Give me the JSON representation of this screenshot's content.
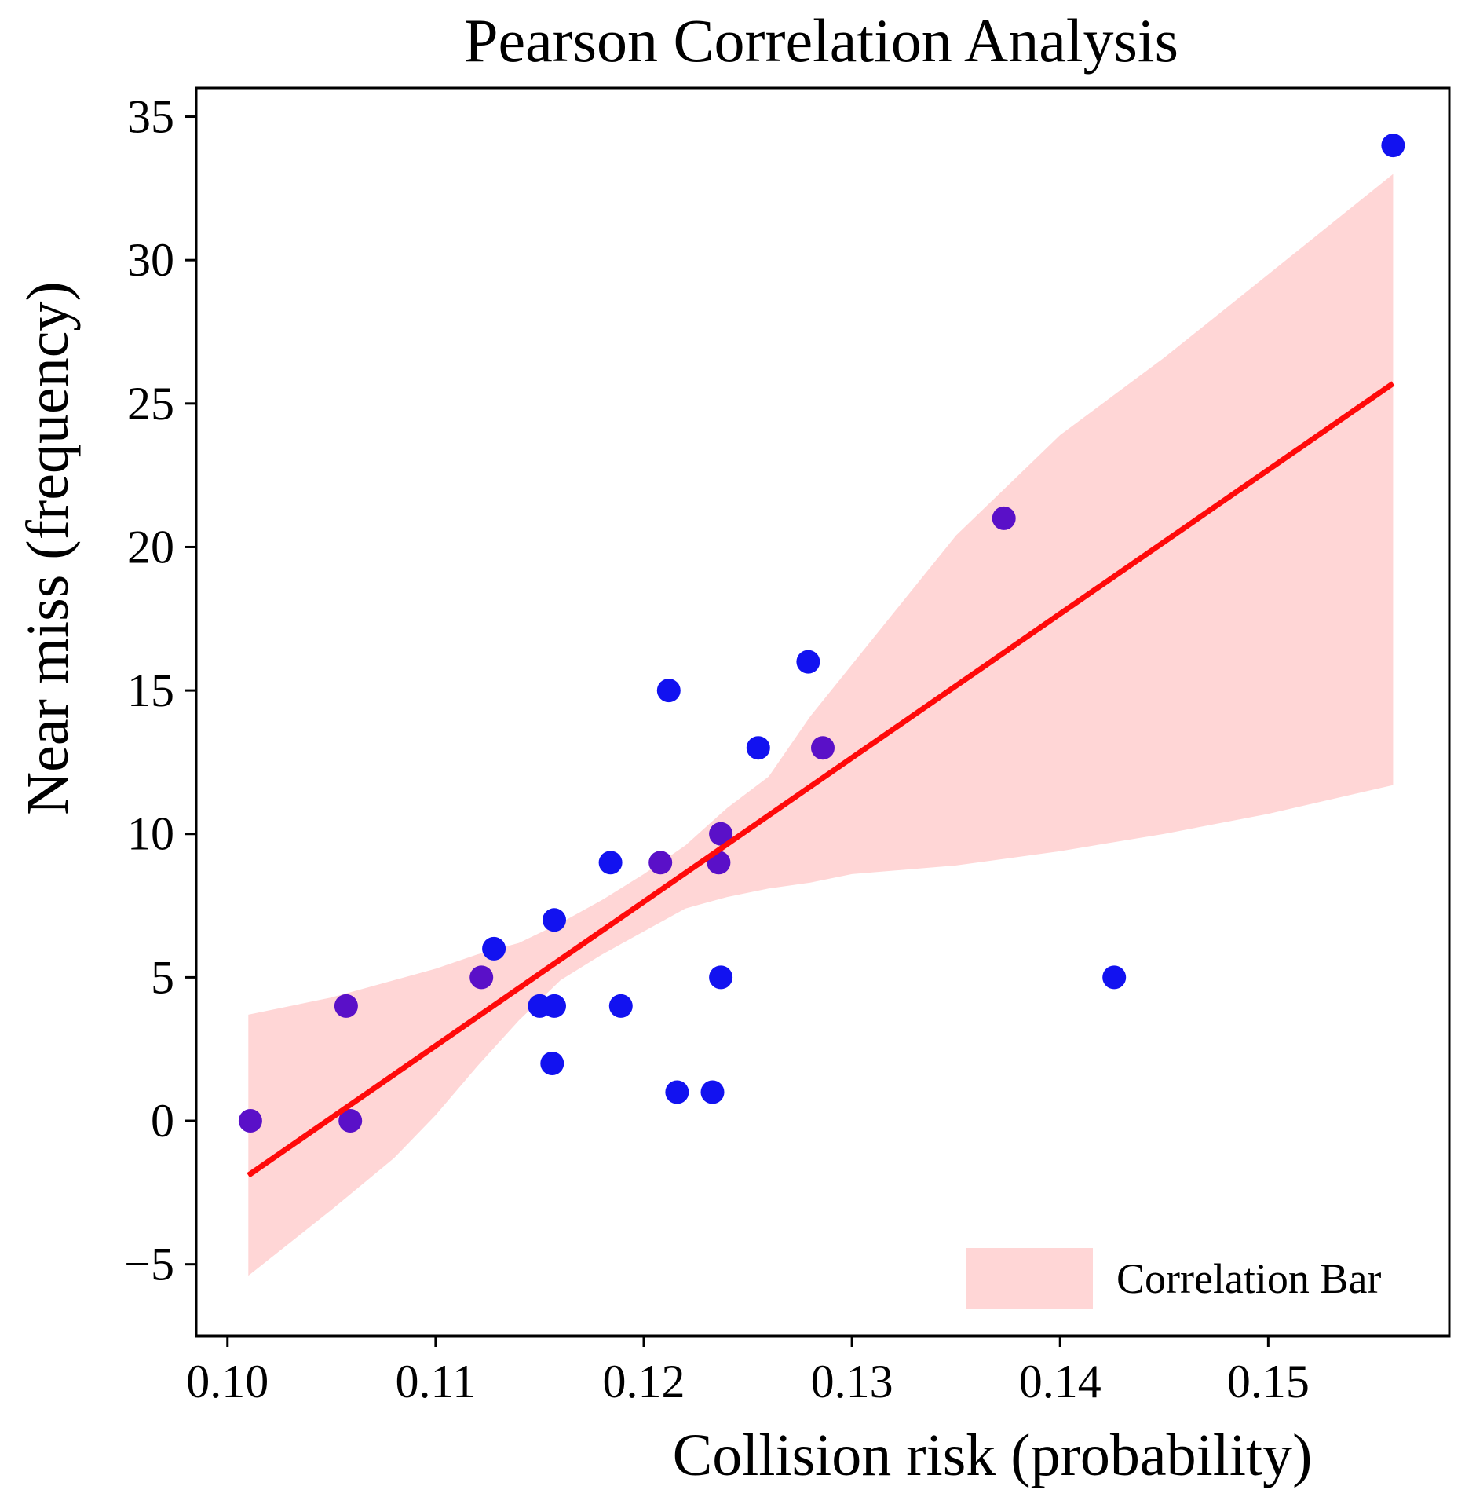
{
  "chart_data": {
    "type": "scatter",
    "title": "Pearson Correlation Analysis",
    "xlabel": "Collision risk (probability)",
    "ylabel": "Near miss  (frequency)",
    "xlim": [
      0.0985,
      0.1587
    ],
    "ylim": [
      -7.5,
      36.0
    ],
    "xticks": [
      0.1,
      0.11,
      0.12,
      0.13,
      0.14,
      0.15
    ],
    "xtick_labels": [
      "0.10",
      "0.11",
      "0.12",
      "0.13",
      "0.14",
      "0.15"
    ],
    "yticks": [
      -5,
      0,
      5,
      10,
      15,
      20,
      25,
      30,
      35
    ],
    "ytick_labels": [
      "−5",
      "0",
      "5",
      "10",
      "15",
      "20",
      "25",
      "30",
      "35"
    ],
    "grid": false,
    "legend": {
      "label": "Correlation Bar",
      "position": "bottom-right"
    },
    "series": [
      {
        "name": "observations",
        "points": [
          {
            "x": 0.1011,
            "y": 0
          },
          {
            "x": 0.1059,
            "y": 0
          },
          {
            "x": 0.1057,
            "y": 4
          },
          {
            "x": 0.1122,
            "y": 5
          },
          {
            "x": 0.1128,
            "y": 6
          },
          {
            "x": 0.115,
            "y": 4
          },
          {
            "x": 0.1157,
            "y": 4
          },
          {
            "x": 0.1156,
            "y": 2
          },
          {
            "x": 0.1157,
            "y": 7
          },
          {
            "x": 0.1184,
            "y": 9
          },
          {
            "x": 0.1189,
            "y": 4
          },
          {
            "x": 0.1208,
            "y": 9
          },
          {
            "x": 0.1212,
            "y": 15
          },
          {
            "x": 0.1216,
            "y": 1
          },
          {
            "x": 0.1233,
            "y": 1
          },
          {
            "x": 0.1236,
            "y": 9
          },
          {
            "x": 0.1237,
            "y": 10
          },
          {
            "x": 0.1237,
            "y": 5
          },
          {
            "x": 0.1255,
            "y": 13
          },
          {
            "x": 0.1279,
            "y": 16
          },
          {
            "x": 0.1286,
            "y": 13
          },
          {
            "x": 0.1373,
            "y": 21
          },
          {
            "x": 0.1426,
            "y": 5
          },
          {
            "x": 0.156,
            "y": 34
          }
        ]
      },
      {
        "name": "regression line",
        "line": [
          [
            0.101,
            -1.9
          ],
          [
            0.156,
            25.7
          ]
        ]
      },
      {
        "name": "Correlation Bar",
        "band": [
          {
            "x": 0.101,
            "lo": -5.4,
            "hi": 3.7
          },
          {
            "x": 0.105,
            "lo": -3.1,
            "hi": 4.3
          },
          {
            "x": 0.108,
            "lo": -1.3,
            "hi": 4.9
          },
          {
            "x": 0.11,
            "lo": 0.2,
            "hi": 5.3
          },
          {
            "x": 0.112,
            "lo": 1.9,
            "hi": 5.8
          },
          {
            "x": 0.114,
            "lo": 3.5,
            "hi": 6.2
          },
          {
            "x": 0.116,
            "lo": 4.9,
            "hi": 6.9
          },
          {
            "x": 0.118,
            "lo": 5.8,
            "hi": 7.7
          },
          {
            "x": 0.12,
            "lo": 6.6,
            "hi": 8.6
          },
          {
            "x": 0.122,
            "lo": 7.4,
            "hi": 9.6
          },
          {
            "x": 0.124,
            "lo": 7.8,
            "hi": 10.9
          },
          {
            "x": 0.126,
            "lo": 8.1,
            "hi": 12.0
          },
          {
            "x": 0.128,
            "lo": 8.3,
            "hi": 14.1
          },
          {
            "x": 0.13,
            "lo": 8.6,
            "hi": 15.9
          },
          {
            "x": 0.135,
            "lo": 8.9,
            "hi": 20.4
          },
          {
            "x": 0.14,
            "lo": 9.4,
            "hi": 23.9
          },
          {
            "x": 0.145,
            "lo": 10.0,
            "hi": 26.6
          },
          {
            "x": 0.15,
            "lo": 10.7,
            "hi": 29.5
          },
          {
            "x": 0.156,
            "lo": 11.7,
            "hi": 33.0
          }
        ]
      }
    ],
    "colors": {
      "points": "#1212f0",
      "points_dark": "#5a10c8",
      "line": "#ff0a0a",
      "band": "#ffd6d6"
    }
  }
}
